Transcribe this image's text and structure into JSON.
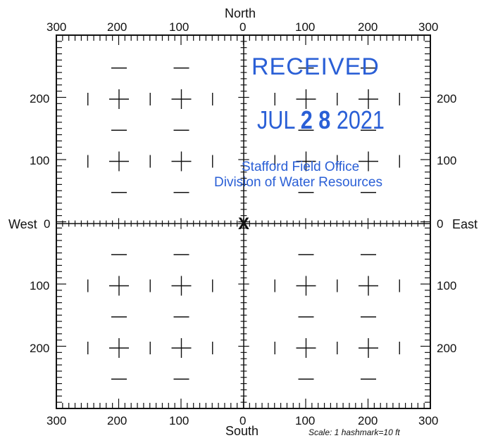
{
  "compass": {
    "north": "North",
    "south": "South",
    "west": "West",
    "east": "East"
  },
  "axis_labels": {
    "top": [
      "300",
      "200",
      "100",
      "0",
      "100",
      "200",
      "300"
    ],
    "bottom": [
      "300",
      "200",
      "100",
      "0",
      "100",
      "200",
      "300"
    ],
    "left": [
      "200",
      "100",
      "0",
      "100",
      "200"
    ],
    "right": [
      "200",
      "100",
      "0",
      "100",
      "200"
    ]
  },
  "center_marker": "X",
  "scale_note": "Scale:  1 hashmark=10 ft",
  "stamp": {
    "received": "RECEIVED",
    "date_prefix": "JUL ",
    "date_day": "2 8",
    "date_year": " 2021",
    "office": "Stafford Field Office",
    "division": "Division of Water Resources",
    "color": "#2a5fd6"
  },
  "ink_color": "#111111"
}
